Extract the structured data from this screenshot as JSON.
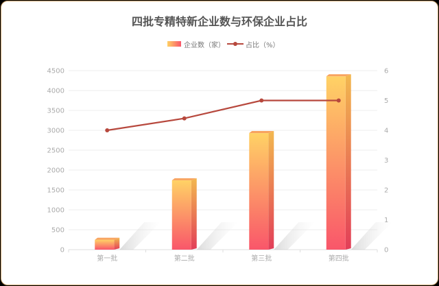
{
  "chart_data": {
    "type": "bar",
    "title": "四批专精特新企业数与环保企业占比",
    "categories": [
      "第一批",
      "第二批",
      "第三批",
      "第四批"
    ],
    "series": [
      {
        "name": "企业数（家）",
        "type": "bar",
        "axis": "left",
        "values": [
          248,
          1744,
          2930,
          4357
        ]
      },
      {
        "name": "占比（%）",
        "type": "line",
        "axis": "right",
        "values": [
          4.0,
          4.4,
          5.0,
          5.0
        ]
      }
    ],
    "y_left": {
      "ylim": [
        0,
        4500
      ],
      "ticks": [
        "0",
        "500",
        "1000",
        "1500",
        "2000",
        "2500",
        "3000",
        "3500",
        "4000",
        "4500"
      ]
    },
    "y_right": {
      "ylim": [
        0,
        6
      ],
      "ticks": [
        "0",
        "1",
        "2",
        "3",
        "4",
        "5",
        "6"
      ]
    },
    "grid": true,
    "legend_position": "top-center",
    "colors": {
      "bar_top": "#ffd265",
      "bar_bottom": "#f9566a",
      "line": "#b7483d",
      "grid": "#eeeeee",
      "tick_text": "#aaaaaa"
    }
  }
}
